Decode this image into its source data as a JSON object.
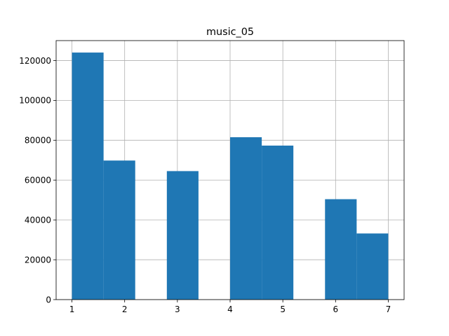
{
  "chart_data": {
    "type": "bar",
    "title": "music_05",
    "xlabel": "",
    "ylabel": "",
    "xlim": [
      0.7,
      7.3
    ],
    "ylim": [
      0,
      130000
    ],
    "xticks": [
      1,
      2,
      3,
      4,
      5,
      6,
      7
    ],
    "xtick_labels": [
      "1",
      "2",
      "3",
      "4",
      "5",
      "6",
      "7"
    ],
    "yticks": [
      0,
      20000,
      40000,
      60000,
      80000,
      100000,
      120000
    ],
    "ytick_labels": [
      "0",
      "20000",
      "40000",
      "60000",
      "80000",
      "100000",
      "120000"
    ],
    "bins": [
      {
        "start": 1.0,
        "end": 1.6,
        "value": 124000
      },
      {
        "start": 1.6,
        "end": 2.2,
        "value": 69800
      },
      {
        "start": 2.2,
        "end": 2.8,
        "value": 0
      },
      {
        "start": 2.8,
        "end": 3.4,
        "value": 64500
      },
      {
        "start": 3.4,
        "end": 4.0,
        "value": 0
      },
      {
        "start": 4.0,
        "end": 4.6,
        "value": 81500
      },
      {
        "start": 4.6,
        "end": 5.2,
        "value": 77300
      },
      {
        "start": 5.2,
        "end": 5.8,
        "value": 0
      },
      {
        "start": 5.8,
        "end": 6.4,
        "value": 50400
      },
      {
        "start": 6.4,
        "end": 7.0,
        "value": 33200
      }
    ],
    "bar_color": "#1f77b4",
    "grid": true,
    "grid_color": "#b0b0b0",
    "legend": false
  }
}
